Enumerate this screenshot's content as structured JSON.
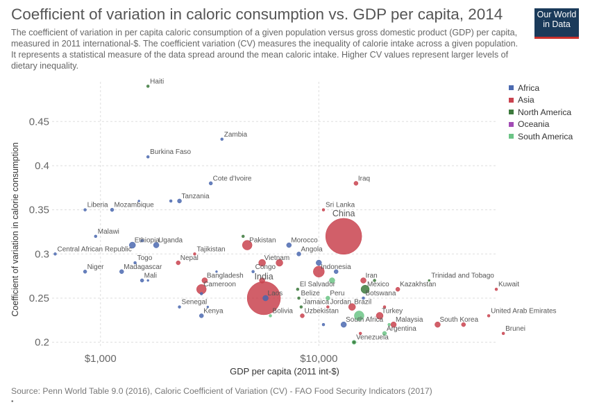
{
  "header": {
    "title": "Coefficient of variation in caloric consumption vs. GDP per capita, 2014",
    "subtitle": "The coefficient of variation in per capita caloric consumption of a given population versus gross domestic product (GDP) per capita, measured in 2011 international-$. The coefficient variation (CV) measures the inequality of calorie intake across a given population. It represents a statistical measure of the data spread around the mean caloric intake. Higher CV values represent larger levels of dietary inequality."
  },
  "logo": {
    "line1": "Our World",
    "line2": "in Data"
  },
  "footer": {
    "source": "Source: Penn World Table 9.0 (2016), Caloric Coefficient of Variation (CV) - FAO Food Security Indicators (2017)",
    "mark": "•"
  },
  "colors": {
    "Africa": "#4c6ab0",
    "Asia": "#c9434f",
    "North America": "#3d7a3d",
    "Oceania": "#a24bb5",
    "South America": "#6cc486",
    "grid": "#dddddd",
    "text": "#555555"
  },
  "chart_data": {
    "type": "scatter",
    "title": "Coefficient of variation in caloric consumption vs. GDP per capita, 2014",
    "xlabel": "GDP per capita (2011 int-$)",
    "ylabel": "Coefficient of variation in calorie consumption",
    "xscale": "log",
    "xlim": [
      600,
      65000
    ],
    "ylim": [
      0.195,
      0.495
    ],
    "xticks": [
      1000,
      10000
    ],
    "xtick_labels": [
      "$1,000",
      "$10,000"
    ],
    "yticks": [
      0.2,
      0.25,
      0.3,
      0.35,
      0.4,
      0.45
    ],
    "ytick_labels": [
      "0.2",
      "0.25",
      "0.3",
      "0.35",
      "0.4",
      "0.45"
    ],
    "grid": true,
    "legend_position": "right",
    "legend": [
      "Africa",
      "Asia",
      "North America",
      "Oceania",
      "South America"
    ],
    "points": [
      {
        "label": "Haiti",
        "x": 1650,
        "y": 0.49,
        "region": "North America",
        "size": 2
      },
      {
        "label": "Zambia",
        "x": 3600,
        "y": 0.43,
        "region": "Africa",
        "size": 2
      },
      {
        "label": "Burkina Faso",
        "x": 1650,
        "y": 0.41,
        "region": "Africa",
        "size": 2
      },
      {
        "label": "Cote d'Ivoire",
        "x": 3200,
        "y": 0.38,
        "region": "Africa",
        "size": 2.5
      },
      {
        "label": "Iraq",
        "x": 14800,
        "y": 0.38,
        "region": "Asia",
        "size": 3
      },
      {
        "label": "Tanzania",
        "x": 2300,
        "y": 0.36,
        "region": "Africa",
        "size": 3
      },
      {
        "label": "",
        "x": 2100,
        "y": 0.36,
        "region": "Africa",
        "size": 2
      },
      {
        "label": "Liberia",
        "x": 850,
        "y": 0.35,
        "region": "Africa",
        "size": 2
      },
      {
        "label": "Mozambique",
        "x": 1130,
        "y": 0.35,
        "region": "Africa",
        "size": 2.5
      },
      {
        "label": "",
        "x": 1500,
        "y": 0.36,
        "region": "Africa",
        "size": 1.5
      },
      {
        "label": "Sri Lanka",
        "x": 10500,
        "y": 0.35,
        "region": "Asia",
        "size": 2
      },
      {
        "label": "China",
        "x": 13000,
        "y": 0.32,
        "region": "Asia",
        "size": 26
      },
      {
        "label": "Malawi",
        "x": 950,
        "y": 0.32,
        "region": "Africa",
        "size": 2
      },
      {
        "label": "Ethiopia",
        "x": 1400,
        "y": 0.31,
        "region": "Africa",
        "size": 4.5
      },
      {
        "label": "Uganda",
        "x": 1800,
        "y": 0.31,
        "region": "Africa",
        "size": 4
      },
      {
        "label": "",
        "x": 1550,
        "y": 0.315,
        "region": "Africa",
        "size": 2
      },
      {
        "label": "Pakistan",
        "x": 4700,
        "y": 0.31,
        "region": "Asia",
        "size": 7
      },
      {
        "label": "",
        "x": 4500,
        "y": 0.32,
        "region": "North America",
        "size": 2
      },
      {
        "label": "Morocco",
        "x": 7300,
        "y": 0.31,
        "region": "Africa",
        "size": 3.5
      },
      {
        "label": "Central African Republic",
        "x": 620,
        "y": 0.3,
        "region": "Africa",
        "size": 2
      },
      {
        "label": "Tajikistan",
        "x": 2700,
        "y": 0.3,
        "region": "Asia",
        "size": 2
      },
      {
        "label": "Angola",
        "x": 8100,
        "y": 0.3,
        "region": "Africa",
        "size": 3
      },
      {
        "label": "Nepal",
        "x": 2270,
        "y": 0.29,
        "region": "Asia",
        "size": 3
      },
      {
        "label": "Togo",
        "x": 1440,
        "y": 0.29,
        "region": "Africa",
        "size": 2
      },
      {
        "label": "Vietnam",
        "x": 5500,
        "y": 0.29,
        "region": "Asia",
        "size": 5
      },
      {
        "label": "",
        "x": 6600,
        "y": 0.29,
        "region": "Asia",
        "size": 5
      },
      {
        "label": "Indonesia",
        "x": 10000,
        "y": 0.28,
        "region": "Asia",
        "size": 8
      },
      {
        "label": "",
        "x": 10000,
        "y": 0.29,
        "region": "Africa",
        "size": 4
      },
      {
        "label": "Niger",
        "x": 850,
        "y": 0.28,
        "region": "Africa",
        "size": 2.5
      },
      {
        "label": "Madagascar",
        "x": 1250,
        "y": 0.28,
        "region": "Africa",
        "size": 3
      },
      {
        "label": "Congo",
        "x": 5000,
        "y": 0.28,
        "region": "Africa",
        "size": 2
      },
      {
        "label": "Mali",
        "x": 1550,
        "y": 0.27,
        "region": "Africa",
        "size": 2.5
      },
      {
        "label": "",
        "x": 1650,
        "y": 0.27,
        "region": "Africa",
        "size": 1.5
      },
      {
        "label": "Bangladesh",
        "x": 3000,
        "y": 0.27,
        "region": "Asia",
        "size": 4
      },
      {
        "label": "",
        "x": 3400,
        "y": 0.28,
        "region": "Africa",
        "size": 1.5
      },
      {
        "label": "India",
        "x": 5600,
        "y": 0.25,
        "region": "Asia",
        "size": 24
      },
      {
        "label": "",
        "x": 5500,
        "y": 0.27,
        "region": "Asia",
        "size": 4
      },
      {
        "label": "Laos",
        "x": 5700,
        "y": 0.25,
        "region": "Asia",
        "size": 4
      },
      {
        "label": "",
        "x": 5700,
        "y": 0.25,
        "region": "Africa",
        "size": 4
      },
      {
        "label": "Cameroon",
        "x": 2900,
        "y": 0.26,
        "region": "Asia",
        "size": 7
      },
      {
        "label": "",
        "x": 2900,
        "y": 0.255,
        "region": "Africa",
        "size": 2
      },
      {
        "label": "Senegal",
        "x": 2300,
        "y": 0.24,
        "region": "Africa",
        "size": 2
      },
      {
        "label": "Kenya",
        "x": 2900,
        "y": 0.23,
        "region": "Africa",
        "size": 3
      },
      {
        "label": "",
        "x": 3100,
        "y": 0.24,
        "region": "Africa",
        "size": 1.5
      },
      {
        "label": "El Salvador",
        "x": 8000,
        "y": 0.26,
        "region": "North America",
        "size": 2
      },
      {
        "label": "Belize",
        "x": 8100,
        "y": 0.25,
        "region": "North America",
        "size": 2
      },
      {
        "label": "Jamaica",
        "x": 8300,
        "y": 0.24,
        "region": "North America",
        "size": 2
      },
      {
        "label": "Bolivia",
        "x": 6000,
        "y": 0.23,
        "region": "South America",
        "size": 2
      },
      {
        "label": "Uzbekistan",
        "x": 8400,
        "y": 0.23,
        "region": "Asia",
        "size": 3
      },
      {
        "label": "Peru",
        "x": 11000,
        "y": 0.25,
        "region": "South America",
        "size": 3
      },
      {
        "label": "Jordan",
        "x": 11000,
        "y": 0.24,
        "region": "Asia",
        "size": 2
      },
      {
        "label": "",
        "x": 11500,
        "y": 0.27,
        "region": "South America",
        "size": 4
      },
      {
        "label": "",
        "x": 12000,
        "y": 0.28,
        "region": "Africa",
        "size": 3
      },
      {
        "label": "Iran",
        "x": 16000,
        "y": 0.27,
        "region": "Asia",
        "size": 4
      },
      {
        "label": "Mexico",
        "x": 16300,
        "y": 0.26,
        "region": "North America",
        "size": 6
      },
      {
        "label": "Botswana",
        "x": 16000,
        "y": 0.25,
        "region": "Africa",
        "size": 2
      },
      {
        "label": "Kazakhstan",
        "x": 23000,
        "y": 0.26,
        "region": "Asia",
        "size": 3
      },
      {
        "label": "",
        "x": 18000,
        "y": 0.27,
        "region": "North America",
        "size": 2
      },
      {
        "label": "Trinidad and Tobago",
        "x": 32000,
        "y": 0.27,
        "region": "North America",
        "size": 1.5
      },
      {
        "label": "Kuwait",
        "x": 65000,
        "y": 0.26,
        "region": "Asia",
        "size": 2
      },
      {
        "label": "Brazil",
        "x": 14200,
        "y": 0.24,
        "region": "Asia",
        "size": 5
      },
      {
        "label": "",
        "x": 15300,
        "y": 0.23,
        "region": "South America",
        "size": 7
      },
      {
        "label": "South Africa",
        "x": 13000,
        "y": 0.22,
        "region": "Africa",
        "size": 4
      },
      {
        "label": "",
        "x": 10500,
        "y": 0.22,
        "region": "Africa",
        "size": 2
      },
      {
        "label": "Turkey",
        "x": 19000,
        "y": 0.23,
        "region": "Asia",
        "size": 5
      },
      {
        "label": "",
        "x": 20000,
        "y": 0.24,
        "region": "Asia",
        "size": 2
      },
      {
        "label": "Malaysia",
        "x": 22000,
        "y": 0.22,
        "region": "Asia",
        "size": 4
      },
      {
        "label": "Argentina",
        "x": 20000,
        "y": 0.21,
        "region": "South America",
        "size": 3
      },
      {
        "label": "",
        "x": 21000,
        "y": 0.22,
        "region": "South America",
        "size": 2
      },
      {
        "label": "United Arab Emirates",
        "x": 60000,
        "y": 0.23,
        "region": "Asia",
        "size": 2
      },
      {
        "label": "South Korea",
        "x": 35000,
        "y": 0.22,
        "region": "Asia",
        "size": 4
      },
      {
        "label": "",
        "x": 46000,
        "y": 0.22,
        "region": "Asia",
        "size": 3
      },
      {
        "label": "Brunei",
        "x": 70000,
        "y": 0.21,
        "region": "Asia",
        "size": 2
      },
      {
        "label": "Venezuela",
        "x": 14500,
        "y": 0.2,
        "region": "South America",
        "size": 3
      },
      {
        "label": "",
        "x": 14500,
        "y": 0.2,
        "region": "North America",
        "size": 2
      },
      {
        "label": "",
        "x": 15500,
        "y": 0.21,
        "region": "Asia",
        "size": 2
      }
    ]
  }
}
